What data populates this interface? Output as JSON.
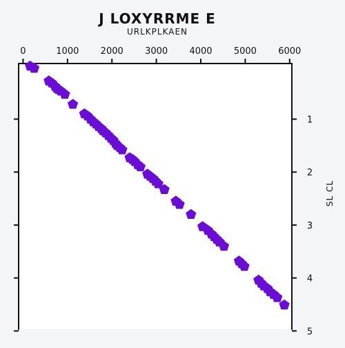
{
  "chart_data": {
    "type": "scatter",
    "title": "J LOXYRRME E",
    "subtitle": "URLKPLKAEN",
    "xlabel": "",
    "ylabel": "SL CL",
    "x_axis_position": "top",
    "y_axis_position": "right",
    "y_inverted": true,
    "xlim": [
      -100,
      6050
    ],
    "ylim": [
      -0.05,
      4.97
    ],
    "x_ticks": [
      0,
      1000,
      2000,
      3000,
      4000,
      5000,
      6000
    ],
    "x_tick_labels": [
      "0",
      "1000",
      "2000",
      "3000",
      "4000",
      "5000",
      "6000"
    ],
    "y_ticks": [
      1,
      2,
      3,
      4,
      5
    ],
    "y_tick_labels": [
      "1",
      "2",
      "3",
      "4",
      "5"
    ],
    "grid": false,
    "marker": "pentagon",
    "color": "#6a0dd6",
    "series": [
      {
        "x": [
          160,
          250,
          580,
          650,
          720,
          760,
          800,
          850,
          940,
          1120,
          1380,
          1450,
          1520,
          1580,
          1640,
          1700,
          1760,
          1800,
          1860,
          1920,
          1980,
          2030,
          2080,
          2120,
          2180,
          2230,
          2400,
          2460,
          2510,
          2580,
          2640,
          2800,
          2860,
          2920,
          2980,
          3040,
          3180,
          3440,
          3520,
          3780,
          4040,
          4160,
          4240,
          4300,
          4360,
          4420,
          4520,
          4860,
          4920,
          4980,
          5300,
          5360,
          5420,
          5500,
          5560,
          5640,
          5720,
          5880
        ],
        "y": [
          0.0,
          0.04,
          0.28,
          0.32,
          0.38,
          0.42,
          0.44,
          0.47,
          0.53,
          0.72,
          0.9,
          0.94,
          1.0,
          1.05,
          1.09,
          1.14,
          1.18,
          1.22,
          1.26,
          1.31,
          1.36,
          1.4,
          1.46,
          1.5,
          1.54,
          1.58,
          1.73,
          1.76,
          1.8,
          1.86,
          1.9,
          2.04,
          2.08,
          2.12,
          2.17,
          2.22,
          2.33,
          2.55,
          2.61,
          2.8,
          3.03,
          3.1,
          3.17,
          3.22,
          3.27,
          3.32,
          3.4,
          3.68,
          3.73,
          3.78,
          4.04,
          4.1,
          4.15,
          4.2,
          4.26,
          4.31,
          4.37,
          4.51
        ]
      }
    ]
  }
}
